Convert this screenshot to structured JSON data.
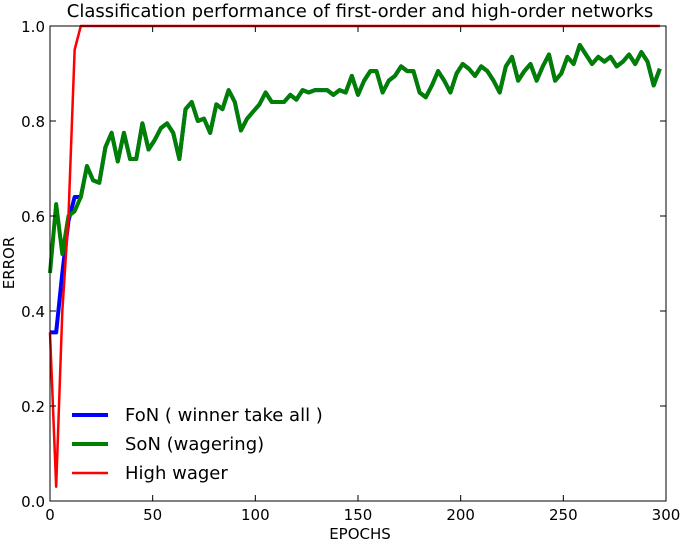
{
  "chart_data": {
    "type": "line",
    "title": "Classification performance of first-order and high-order networks",
    "xlabel": "EPOCHS",
    "ylabel": "ERROR",
    "xlim": [
      0,
      300
    ],
    "ylim": [
      0.0,
      1.0
    ],
    "xticks": [
      0,
      50,
      100,
      150,
      200,
      250,
      300
    ],
    "yticks": [
      0.0,
      0.2,
      0.4,
      0.6,
      0.8,
      1.0
    ],
    "xtick_labels": [
      "0",
      "50",
      "100",
      "150",
      "200",
      "250",
      "300"
    ],
    "ytick_labels": [
      "0.0",
      "0.2",
      "0.4",
      "0.6",
      "0.8",
      "1.0"
    ],
    "grid": false,
    "legend_position": "lower-left",
    "series": [
      {
        "name": "FoN ( winner take all )",
        "color": "#0000ff",
        "x": [
          0,
          3,
          6,
          9,
          12,
          15,
          18,
          21,
          24,
          27,
          30,
          33,
          36,
          39,
          42,
          45,
          48,
          51,
          54,
          57,
          60,
          63,
          66,
          69,
          72,
          75,
          78,
          81,
          84,
          87,
          90,
          93,
          96,
          99,
          102,
          105,
          108,
          111,
          114,
          117,
          120,
          123,
          126,
          129,
          132,
          135,
          138,
          141,
          144,
          147,
          150,
          153,
          156,
          159,
          162,
          165,
          168,
          171,
          174,
          177,
          180,
          183,
          186,
          189,
          192,
          195,
          198,
          201,
          204,
          207,
          210,
          213,
          216,
          219,
          222,
          225,
          228,
          231,
          234,
          237,
          240,
          243,
          246,
          249,
          252,
          255,
          258,
          261,
          264,
          267,
          270,
          273,
          276,
          279,
          282,
          285,
          288,
          291,
          294,
          297
        ],
        "y": [
          0.355,
          0.355,
          0.48,
          0.59,
          0.64,
          0.64,
          0.705,
          0.675,
          0.67,
          0.745,
          0.775,
          0.715,
          0.775,
          0.72,
          0.72,
          0.795,
          0.74,
          0.76,
          0.785,
          0.795,
          0.775,
          0.72,
          0.825,
          0.84,
          0.8,
          0.805,
          0.775,
          0.835,
          0.825,
          0.865,
          0.84,
          0.78,
          0.805,
          0.82,
          0.835,
          0.86,
          0.84,
          0.84,
          0.84,
          0.855,
          0.845,
          0.865,
          0.86,
          0.865,
          0.865,
          0.865,
          0.855,
          0.865,
          0.86,
          0.895,
          0.855,
          0.885,
          0.905,
          0.905,
          0.86,
          0.885,
          0.895,
          0.915,
          0.905,
          0.905,
          0.86,
          0.85,
          0.875,
          0.905,
          0.885,
          0.86,
          0.9,
          0.92,
          0.91,
          0.895,
          0.915,
          0.905,
          0.885,
          0.86,
          0.915,
          0.935,
          0.885,
          0.905,
          0.92,
          0.885,
          0.915,
          0.94,
          0.885,
          0.9,
          0.935,
          0.92,
          0.96,
          0.94,
          0.92,
          0.935,
          0.925,
          0.935,
          0.915,
          0.925,
          0.94,
          0.92,
          0.945,
          0.925,
          0.875,
          0.91
        ]
      },
      {
        "name": "SoN (wagering)",
        "color": "#008000",
        "x": [
          0,
          3,
          6,
          9,
          12,
          15,
          18,
          21,
          24,
          27,
          30,
          33,
          36,
          39,
          42,
          45,
          48,
          51,
          54,
          57,
          60,
          63,
          66,
          69,
          72,
          75,
          78,
          81,
          84,
          87,
          90,
          93,
          96,
          99,
          102,
          105,
          108,
          111,
          114,
          117,
          120,
          123,
          126,
          129,
          132,
          135,
          138,
          141,
          144,
          147,
          150,
          153,
          156,
          159,
          162,
          165,
          168,
          171,
          174,
          177,
          180,
          183,
          186,
          189,
          192,
          195,
          198,
          201,
          204,
          207,
          210,
          213,
          216,
          219,
          222,
          225,
          228,
          231,
          234,
          237,
          240,
          243,
          246,
          249,
          252,
          255,
          258,
          261,
          264,
          267,
          270,
          273,
          276,
          279,
          282,
          285,
          288,
          291,
          294,
          297
        ],
        "y": [
          0.48,
          0.625,
          0.52,
          0.6,
          0.61,
          0.64,
          0.705,
          0.675,
          0.67,
          0.745,
          0.775,
          0.715,
          0.775,
          0.72,
          0.72,
          0.795,
          0.74,
          0.76,
          0.785,
          0.795,
          0.775,
          0.72,
          0.825,
          0.84,
          0.8,
          0.805,
          0.775,
          0.835,
          0.825,
          0.865,
          0.84,
          0.78,
          0.805,
          0.82,
          0.835,
          0.86,
          0.84,
          0.84,
          0.84,
          0.855,
          0.845,
          0.865,
          0.86,
          0.865,
          0.865,
          0.865,
          0.855,
          0.865,
          0.86,
          0.895,
          0.855,
          0.885,
          0.905,
          0.905,
          0.86,
          0.885,
          0.895,
          0.915,
          0.905,
          0.905,
          0.86,
          0.85,
          0.875,
          0.905,
          0.885,
          0.86,
          0.9,
          0.92,
          0.91,
          0.895,
          0.915,
          0.905,
          0.885,
          0.86,
          0.915,
          0.935,
          0.885,
          0.905,
          0.92,
          0.885,
          0.915,
          0.94,
          0.885,
          0.9,
          0.935,
          0.92,
          0.96,
          0.94,
          0.92,
          0.935,
          0.925,
          0.935,
          0.915,
          0.925,
          0.94,
          0.92,
          0.945,
          0.925,
          0.875,
          0.91
        ]
      },
      {
        "name": "High wager",
        "color": "#ff0000",
        "x": [
          0,
          3,
          6,
          9,
          12,
          15,
          18,
          21,
          24,
          30,
          50,
          100,
          150,
          200,
          250,
          297
        ],
        "y": [
          0.355,
          0.03,
          0.4,
          0.6,
          0.95,
          1.0,
          1.0,
          1.0,
          1.0,
          1.0,
          1.0,
          1.0,
          1.0,
          1.0,
          1.0,
          1.0
        ]
      }
    ]
  }
}
